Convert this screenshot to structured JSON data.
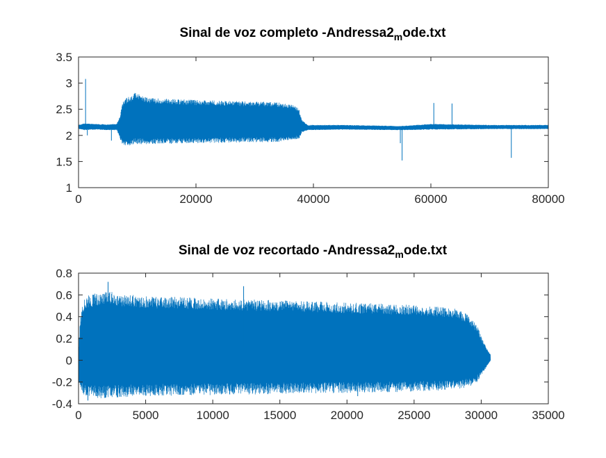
{
  "chart_data": [
    {
      "type": "line",
      "title": {
        "main": "Sinal de voz completo -Andressa2",
        "sub": "m",
        "tail": "ode.txt"
      },
      "xlabel": "",
      "ylabel": "",
      "xlim": [
        0,
        80000
      ],
      "ylim": [
        1,
        3.5
      ],
      "xticks": [
        "0",
        "20000",
        "40000",
        "60000",
        "80000"
      ],
      "yticks": [
        "1",
        "1.5",
        "2",
        "2.5",
        "3",
        "3.5"
      ],
      "grid": false,
      "color": "#0072BD",
      "series": [
        {
          "envelope_x": [
            0,
            1000,
            3000,
            5000,
            6500,
            7000,
            7400,
            7800,
            9000,
            9500,
            12000,
            15000,
            20000,
            25000,
            30000,
            33000,
            35000,
            36500,
            37500,
            38000,
            39000,
            45000,
            55000,
            60000,
            70000,
            80000
          ],
          "envelope_max": [
            2.2,
            2.23,
            2.22,
            2.21,
            2.22,
            2.35,
            2.6,
            2.7,
            2.76,
            2.82,
            2.72,
            2.7,
            2.68,
            2.66,
            2.65,
            2.64,
            2.62,
            2.58,
            2.52,
            2.3,
            2.2,
            2.2,
            2.18,
            2.22,
            2.2,
            2.2
          ],
          "envelope_min": [
            2.12,
            2.1,
            2.11,
            2.1,
            2.1,
            1.95,
            1.82,
            1.8,
            1.8,
            1.83,
            1.83,
            1.84,
            1.85,
            1.86,
            1.87,
            1.87,
            1.88,
            1.9,
            1.93,
            2.05,
            2.1,
            2.11,
            2.1,
            2.11,
            2.12,
            2.12
          ],
          "spikes": [
            {
              "x": 1200,
              "y": 3.08
            },
            {
              "x": 1500,
              "y": 2.0
            },
            {
              "x": 5600,
              "y": 1.9
            },
            {
              "x": 55100,
              "y": 1.52
            },
            {
              "x": 54800,
              "y": 1.85
            },
            {
              "x": 60500,
              "y": 2.62
            },
            {
              "x": 63600,
              "y": 2.61
            },
            {
              "x": 73700,
              "y": 1.57
            }
          ]
        }
      ]
    },
    {
      "type": "line",
      "title": {
        "main": "Sinal de voz recortado -Andressa2",
        "sub": "m",
        "tail": "ode.txt"
      },
      "xlabel": "",
      "ylabel": "",
      "xlim": [
        0,
        35000
      ],
      "ylim": [
        -0.4,
        0.8
      ],
      "xticks": [
        "0",
        "5000",
        "10000",
        "15000",
        "20000",
        "25000",
        "30000",
        "35000"
      ],
      "yticks": [
        "-0.4",
        "-0.2",
        "0",
        "0.2",
        "0.4",
        "0.6",
        "0.8"
      ],
      "grid": false,
      "color": "#0072BD",
      "series": [
        {
          "envelope_x": [
            0,
            150,
            400,
            800,
            1500,
            2000,
            2200,
            3000,
            5000,
            10000,
            15000,
            20000,
            25000,
            28000,
            29000,
            29700,
            30200,
            30700
          ],
          "envelope_max": [
            0.1,
            0.42,
            0.57,
            0.6,
            0.62,
            0.64,
            0.64,
            0.61,
            0.59,
            0.57,
            0.55,
            0.53,
            0.51,
            0.48,
            0.42,
            0.32,
            0.16,
            0.05
          ],
          "envelope_min": [
            -0.2,
            -0.27,
            -0.32,
            -0.34,
            -0.35,
            -0.35,
            -0.35,
            -0.34,
            -0.33,
            -0.32,
            -0.31,
            -0.3,
            -0.29,
            -0.27,
            -0.25,
            -0.2,
            -0.1,
            0.0
          ],
          "spikes": [
            {
              "x": 2200,
              "y": 0.72
            },
            {
              "x": 12300,
              "y": 0.68
            },
            {
              "x": 700,
              "y": -0.37
            },
            {
              "x": 20800,
              "y": -0.33
            }
          ]
        }
      ]
    }
  ]
}
